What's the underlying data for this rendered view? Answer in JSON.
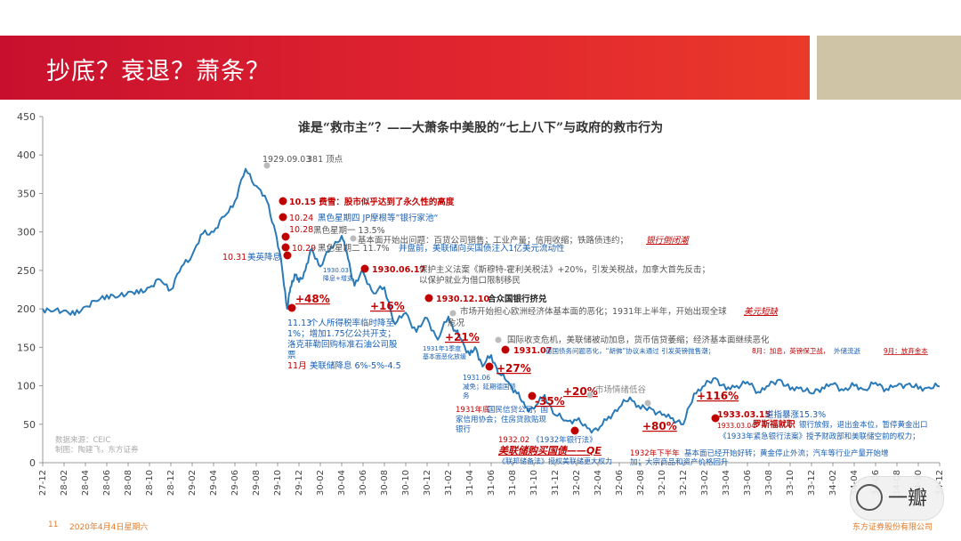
{
  "slide": {
    "title": "抄底？衰退？萧条？",
    "page": "11",
    "date": "2020年4月4日星期六",
    "company": "东方证券股份有限公司",
    "watermark": "一瓣"
  },
  "colors": {
    "red": "#c00000",
    "blue": "#1a5fb4",
    "line": "#2a7ab8",
    "accent": "#c8102e"
  },
  "chart_data": {
    "type": "line",
    "title": "谁是“救市主”？——大萧条中美股的“七上八下”与政府的救市行为",
    "ylim": [
      0,
      450
    ],
    "yticks": [
      0,
      50,
      100,
      150,
      200,
      250,
      300,
      350,
      400,
      450
    ],
    "xticks": [
      "27-12",
      "28-02",
      "28-04",
      "28-06",
      "28-08",
      "28-10",
      "28-12",
      "29-02",
      "29-04",
      "29-06",
      "29-08",
      "29-10",
      "29-12",
      "30-02",
      "30-04",
      "30-06",
      "30-08",
      "30-10",
      "30-12",
      "31-02",
      "31-04",
      "31-06",
      "31-08",
      "31-10",
      "31-12",
      "32-02",
      "32-04",
      "32-06",
      "32-08",
      "32-10",
      "32-12",
      "33-02",
      "33-04",
      "33-06",
      "33-08",
      "33-10",
      "33-12",
      "34-02",
      "34-04",
      "34-06",
      "34-08",
      "34-10",
      "34-12"
    ],
    "series": [
      {
        "x": [
          0,
          0.5,
          1,
          1.5,
          2,
          2.5,
          3,
          3.5,
          4,
          4.5,
          5,
          5.5,
          6,
          6.5,
          7,
          7.5,
          8,
          8.5,
          9,
          9.5,
          10,
          10.5,
          10.9,
          11.2,
          11.45,
          11.6,
          11.8,
          12,
          12.3,
          12.6,
          13,
          13.5,
          14,
          14.3,
          14.6,
          15,
          15.5,
          16,
          16.5,
          17,
          17.5,
          18,
          18.5,
          19,
          19.3,
          19.6,
          20,
          20.3,
          20.6,
          21,
          21.4,
          21.8,
          22.2,
          22.6,
          23,
          23.5,
          24,
          24.5,
          25,
          25.5,
          26,
          26.5,
          27,
          27.5,
          28,
          28.5,
          29,
          29.5,
          30,
          30.5,
          31,
          31.5,
          32,
          32.5,
          33,
          33.5,
          34,
          34.5,
          35,
          35.5,
          36,
          36.5,
          37,
          37.5,
          38,
          38.5,
          39,
          39.5,
          40,
          40.5,
          41,
          41.5,
          42
        ],
        "values": [
          200,
          197,
          198,
          192,
          203,
          210,
          218,
          215,
          222,
          220,
          228,
          238,
          225,
          255,
          270,
          298,
          300,
          320,
          340,
          382,
          360,
          340,
          300,
          255,
          200,
          228,
          245,
          235,
          250,
          278,
          255,
          280,
          295,
          265,
          230,
          248,
          220,
          228,
          180,
          195,
          170,
          188,
          160,
          190,
          172,
          160,
          140,
          148,
          125,
          140,
          115,
          105,
          90,
          72,
          70,
          88,
          62,
          55,
          55,
          45,
          42,
          60,
          72,
          85,
          70,
          70,
          62,
          58,
          50,
          90,
          100,
          110,
          95,
          100,
          105,
          92,
          100,
          108,
          95,
          98,
          90,
          98,
          102,
          94,
          100,
          95,
          104,
          96,
          100,
          102,
          96,
          98,
          99
        ]
      }
    ],
    "annotations": {
      "peak": {
        "date": "1929.09.03",
        "value": "381",
        "suffix": "顶点"
      },
      "e1015": {
        "date": "10.15",
        "text": "费雪：股市似乎达到了永久性的高度"
      },
      "e1024": {
        "date": "10.24",
        "text": "黑色星期四 JP摩根等”银行家池“"
      },
      "e1028": {
        "date": "10.28",
        "text": "黑色星期一 13.5%"
      },
      "e1029": {
        "date": "10.29",
        "text": "黑色星期二 11.7%",
        "extra": "并盘前，美联储向买国债注入1亿美元流动性"
      },
      "fundamental": {
        "text": "基本面开始出问题：百货公司销售；工业产量；信用收缩；铁路债违约；",
        "tail": "银行倒闭潮"
      },
      "e1031": {
        "date": "10.31",
        "text": "美英降息"
      },
      "g48": {
        "text": "+48%"
      },
      "e1113": {
        "date": "11.13",
        "lines": [
          "个人所得税率临时降至",
          "1%；增加1.75亿公共开支；",
          "洛克菲勒回购标准石油公司股",
          "票"
        ]
      },
      "e11m": {
        "date": "11月",
        "text": "美联储降息 6%-5%-4.5"
      },
      "e1930_03": {
        "lines": [
          "1930.03",
          "降息+增支"
        ]
      },
      "e19300617": {
        "date": "1930.06.17",
        "lines": [
          "保护主义法案《斯穆特-霍利关税法》+20%，引发关税战，加拿大首先反击；",
          "以保护就业为借口限制移民"
        ]
      },
      "g16": {
        "text": "+16%"
      },
      "e19301210": {
        "date": "1930.12.10",
        "text": "合众国银行挤兑"
      },
      "market": {
        "lines": [
          "市场开始担心欧洲经济体基本面的恶化；1931年上半年，开始出现全球",
          "危况"
        ],
        "tail": "美元短缺"
      },
      "g21": {
        "text": "+21%"
      },
      "e1931q1": {
        "lines": [
          "1931年1季度",
          "基本面恶化放缓"
        ]
      },
      "intl": {
        "text": "国际收支危机，美联储被动加息，货币信贷萎缩；经济基本面继续恶化"
      },
      "e193107": {
        "date": "1931.07",
        "text": "德国债务问题恶化，“胡佛”协议未通过 引发英镑抛售潮；",
        "m8": "8月：加息，英镑保卫战，",
        "outflow": "外储流逝",
        "m9": "9月：放弃金本"
      },
      "g27": {
        "text": "+27%"
      },
      "e193106": {
        "lines": [
          "1931.06",
          "减免；延期德国债",
          "务"
        ]
      },
      "e1931end": {
        "lines": [
          "1931年底",
          "国民信贷公司；国",
          "家信用协会；住房贷款贴现",
          "银行"
        ]
      },
      "g35": {
        "text": "-35%"
      },
      "g20": {
        "text": "+20%"
      },
      "sentiment": {
        "text": "市场情绪低谷"
      },
      "e193202": {
        "lines": [
          "1932.02",
          "《1932年银行法》"
        ]
      },
      "qe": {
        "text": "美联储购买国债——QE"
      },
      "e193202b": {
        "text": "《联邦储备法》授权美联储更大权力"
      },
      "g80": {
        "text": "+80%"
      },
      "e1932h2": {
        "lines": [
          "1932年下半年",
          "基本面已经开始好转；黄金停止外流；汽车等行业产量开始增",
          "加；大宗商品和资产价格回升"
        ]
      },
      "g116": {
        "text": "+116%"
      },
      "e19330315": {
        "date": "1933.03.15",
        "text": "道指暴涨15.3%"
      },
      "e19330304": {
        "date": "1933.03.04",
        "name": "罗斯福就职",
        "text": "银行放假，退出金本位，暂停黄金出口",
        "line2": "《1933年紧急银行法案》授予财政部和美联储空前的权力；"
      },
      "source": {
        "lines": [
          "数据来源：CEIC",
          "制图：陶建飞，东方证券"
        ]
      }
    }
  }
}
